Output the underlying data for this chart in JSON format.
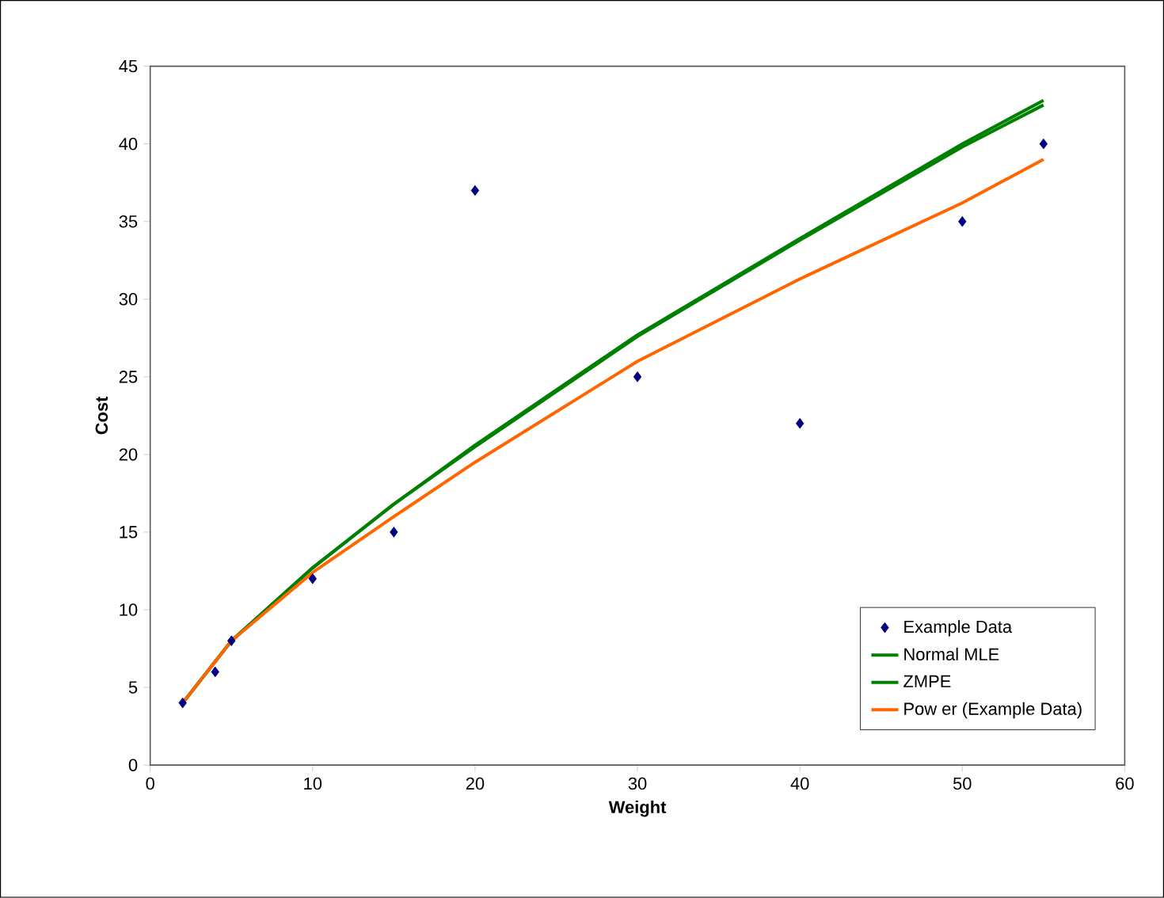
{
  "chart_data": {
    "type": "scatter",
    "xlabel": "Weight",
    "ylabel": "Cost",
    "xlim": [
      0,
      60
    ],
    "ylim": [
      0,
      45
    ],
    "xticks": [
      0,
      10,
      20,
      30,
      40,
      50,
      60
    ],
    "yticks": [
      0,
      5,
      10,
      15,
      20,
      25,
      30,
      35,
      40,
      45
    ],
    "legend": "bottom right",
    "grid": false,
    "series": [
      {
        "name": "Example Data",
        "marker": "diamond",
        "color": "#000080",
        "x": [
          2,
          4,
          5,
          10,
          15,
          20,
          30,
          40,
          50,
          55
        ],
        "values": [
          4,
          6,
          8,
          12,
          15,
          37,
          25,
          22,
          35,
          40
        ]
      },
      {
        "name": "Normal MLE",
        "type": "line",
        "marker": "none",
        "color": "#008000",
        "x": [
          2,
          5,
          10,
          15,
          20,
          30,
          40,
          50,
          55
        ],
        "values": [
          4,
          8,
          12.7,
          16.8,
          20.5,
          27.6,
          33.8,
          39.8,
          42.5
        ]
      },
      {
        "name": "ZMPE",
        "type": "line",
        "marker": "none",
        "color": "#008000",
        "x": [
          2,
          5,
          10,
          15,
          20,
          30,
          40,
          50,
          55
        ],
        "values": [
          4,
          8,
          12.7,
          16.8,
          20.6,
          27.7,
          33.9,
          40,
          42.8
        ]
      },
      {
        "name": "Pow er (Example Data)",
        "type": "line",
        "marker": "none",
        "color": "#ff6600",
        "x": [
          2,
          5,
          10,
          15,
          20,
          30,
          40,
          50,
          55
        ],
        "values": [
          4,
          8,
          12.4,
          16,
          19.5,
          26,
          31.3,
          36.2,
          39
        ]
      }
    ]
  }
}
